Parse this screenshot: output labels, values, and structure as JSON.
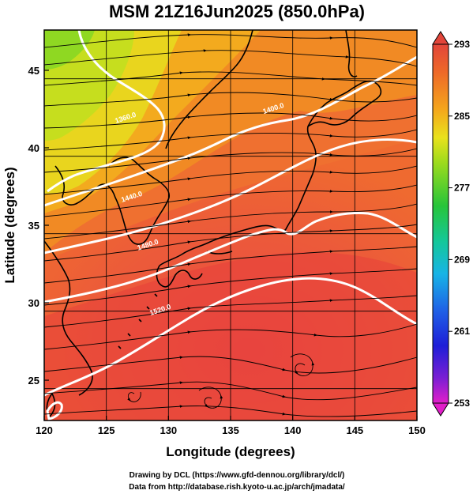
{
  "title": "MSM 21Z16Jun2025 (850.0hPa)",
  "credits": [
    "Drawing by DCL (https://www.gfd-dennou.org/library/dcl/)",
    "Data from http://database.rish.kyoto-u.ac.jp/arch/jmadata/"
  ],
  "map": {
    "x_label": "Longitude (degrees)",
    "y_label": "Latitude  (degrees)",
    "x_ticks": [
      120,
      125,
      130,
      135,
      140,
      145,
      150
    ],
    "y_ticks": [
      25,
      30,
      35,
      40,
      45
    ],
    "xlim": [
      120,
      150
    ],
    "ylim": [
      22.4,
      47.6
    ],
    "contour_labels": [
      {
        "text": "1400.0",
        "lon": 138.5,
        "lat": 42.4
      },
      {
        "text": "1360.0",
        "lon": 126.6,
        "lat": 41.8
      },
      {
        "text": "1440.0",
        "lon": 127.1,
        "lat": 36.7
      },
      {
        "text": "1480.0",
        "lon": 128.4,
        "lat": 33.6
      },
      {
        "text": "1520.0",
        "lon": 129.4,
        "lat": 29.4
      }
    ]
  },
  "colorbar": {
    "ticks": [
      293,
      285,
      277,
      269,
      261,
      253
    ],
    "colors": {
      "293": "#e2453a",
      "290": "#ee6a28",
      "287": "#f4a51c",
      "285": "#e9e21c",
      "282": "#9ddb1c",
      "277": "#27c53a",
      "273": "#14c79a",
      "269": "#17b4e6",
      "265": "#1f62e6",
      "261": "#1e1ed8",
      "257": "#7a1ed4",
      "253": "#e21ec9"
    }
  }
}
